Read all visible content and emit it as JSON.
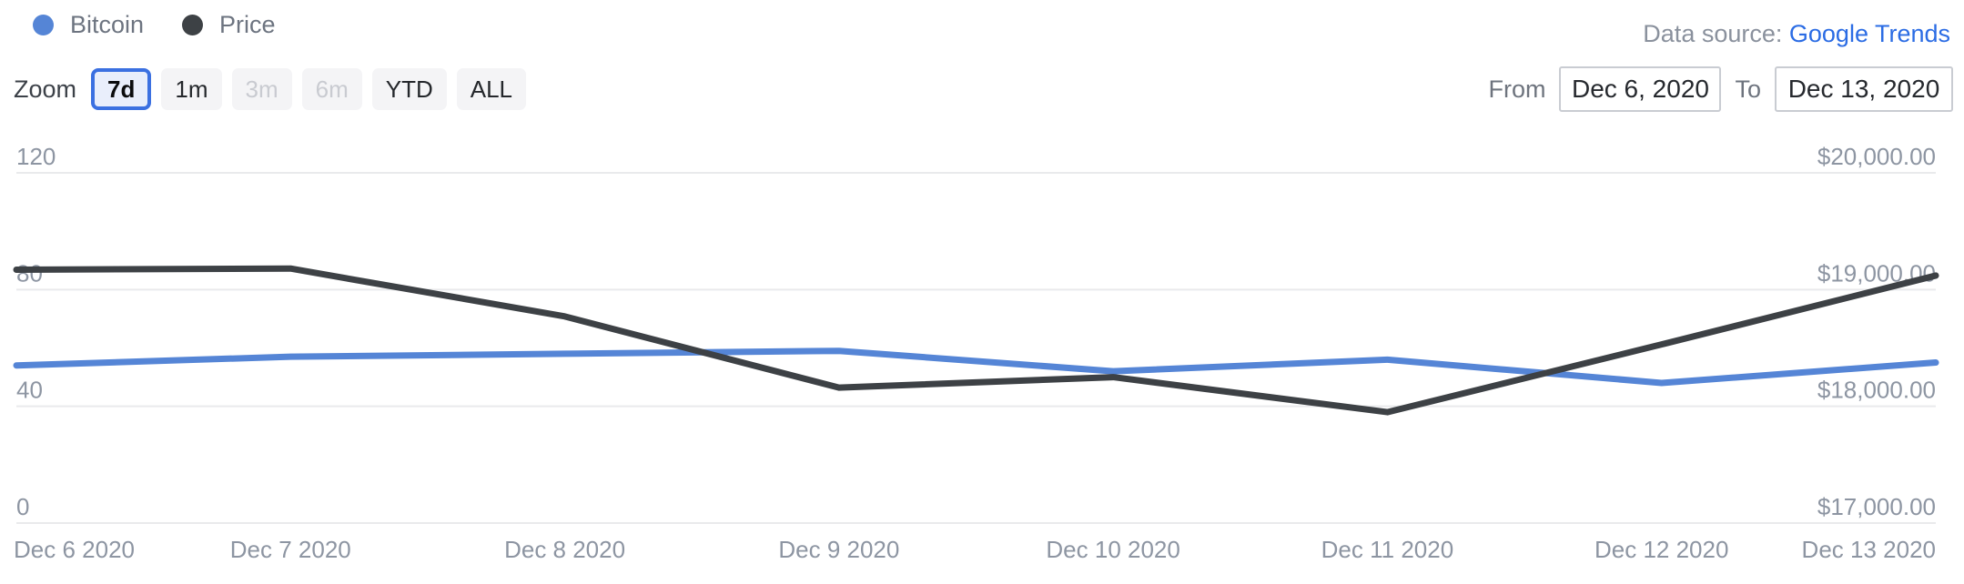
{
  "legend": {
    "items": [
      {
        "label": "Bitcoin",
        "color": "#5585d6"
      },
      {
        "label": "Price",
        "color": "#3d4145"
      }
    ]
  },
  "data_source": {
    "prefix": "Data source:",
    "link_label": "Google Trends",
    "link_color": "#2b6ce4"
  },
  "range_selector": {
    "zoom_label": "Zoom",
    "buttons": [
      {
        "label": "7d",
        "state": "selected"
      },
      {
        "label": "1m",
        "state": "default"
      },
      {
        "label": "3m",
        "state": "disabled"
      },
      {
        "label": "6m",
        "state": "disabled"
      },
      {
        "label": "YTD",
        "state": "default"
      },
      {
        "label": "ALL",
        "state": "default"
      }
    ],
    "from_label": "From",
    "from_value": "Dec 6, 2020",
    "to_label": "To",
    "to_value": "Dec 13, 2020"
  },
  "chart_data": {
    "type": "line",
    "categories": [
      "Dec 6 2020",
      "Dec 7 2020",
      "Dec 8 2020",
      "Dec 9 2020",
      "Dec 10 2020",
      "Dec 11 2020",
      "Dec 12 2020",
      "Dec 13 2020"
    ],
    "series": [
      {
        "name": "Bitcoin",
        "axis": "left",
        "color": "#5585d6",
        "values": [
          54,
          57,
          58,
          59,
          52,
          56,
          48,
          55
        ]
      },
      {
        "name": "Price",
        "axis": "right",
        "color": "#3d4145",
        "values": [
          19170,
          19180,
          18770,
          18160,
          18250,
          17950,
          18530,
          19120
        ]
      }
    ],
    "left_axis": {
      "min": 0,
      "max": 120,
      "tick_values": [
        0,
        40,
        80,
        120
      ],
      "tick_labels": [
        "0",
        "40",
        "80",
        "120"
      ]
    },
    "right_axis": {
      "min": 17000,
      "max": 20000,
      "tick_values": [
        17000,
        18000,
        19000,
        20000
      ],
      "tick_labels": [
        "$17,000.00",
        "$18,000.00",
        "$19,000.00",
        "$20,000.00"
      ]
    },
    "grid": true,
    "legend_position": "top-left",
    "colors": {
      "grid": "#e9eaec",
      "axis_label": "#8d95a2"
    }
  }
}
